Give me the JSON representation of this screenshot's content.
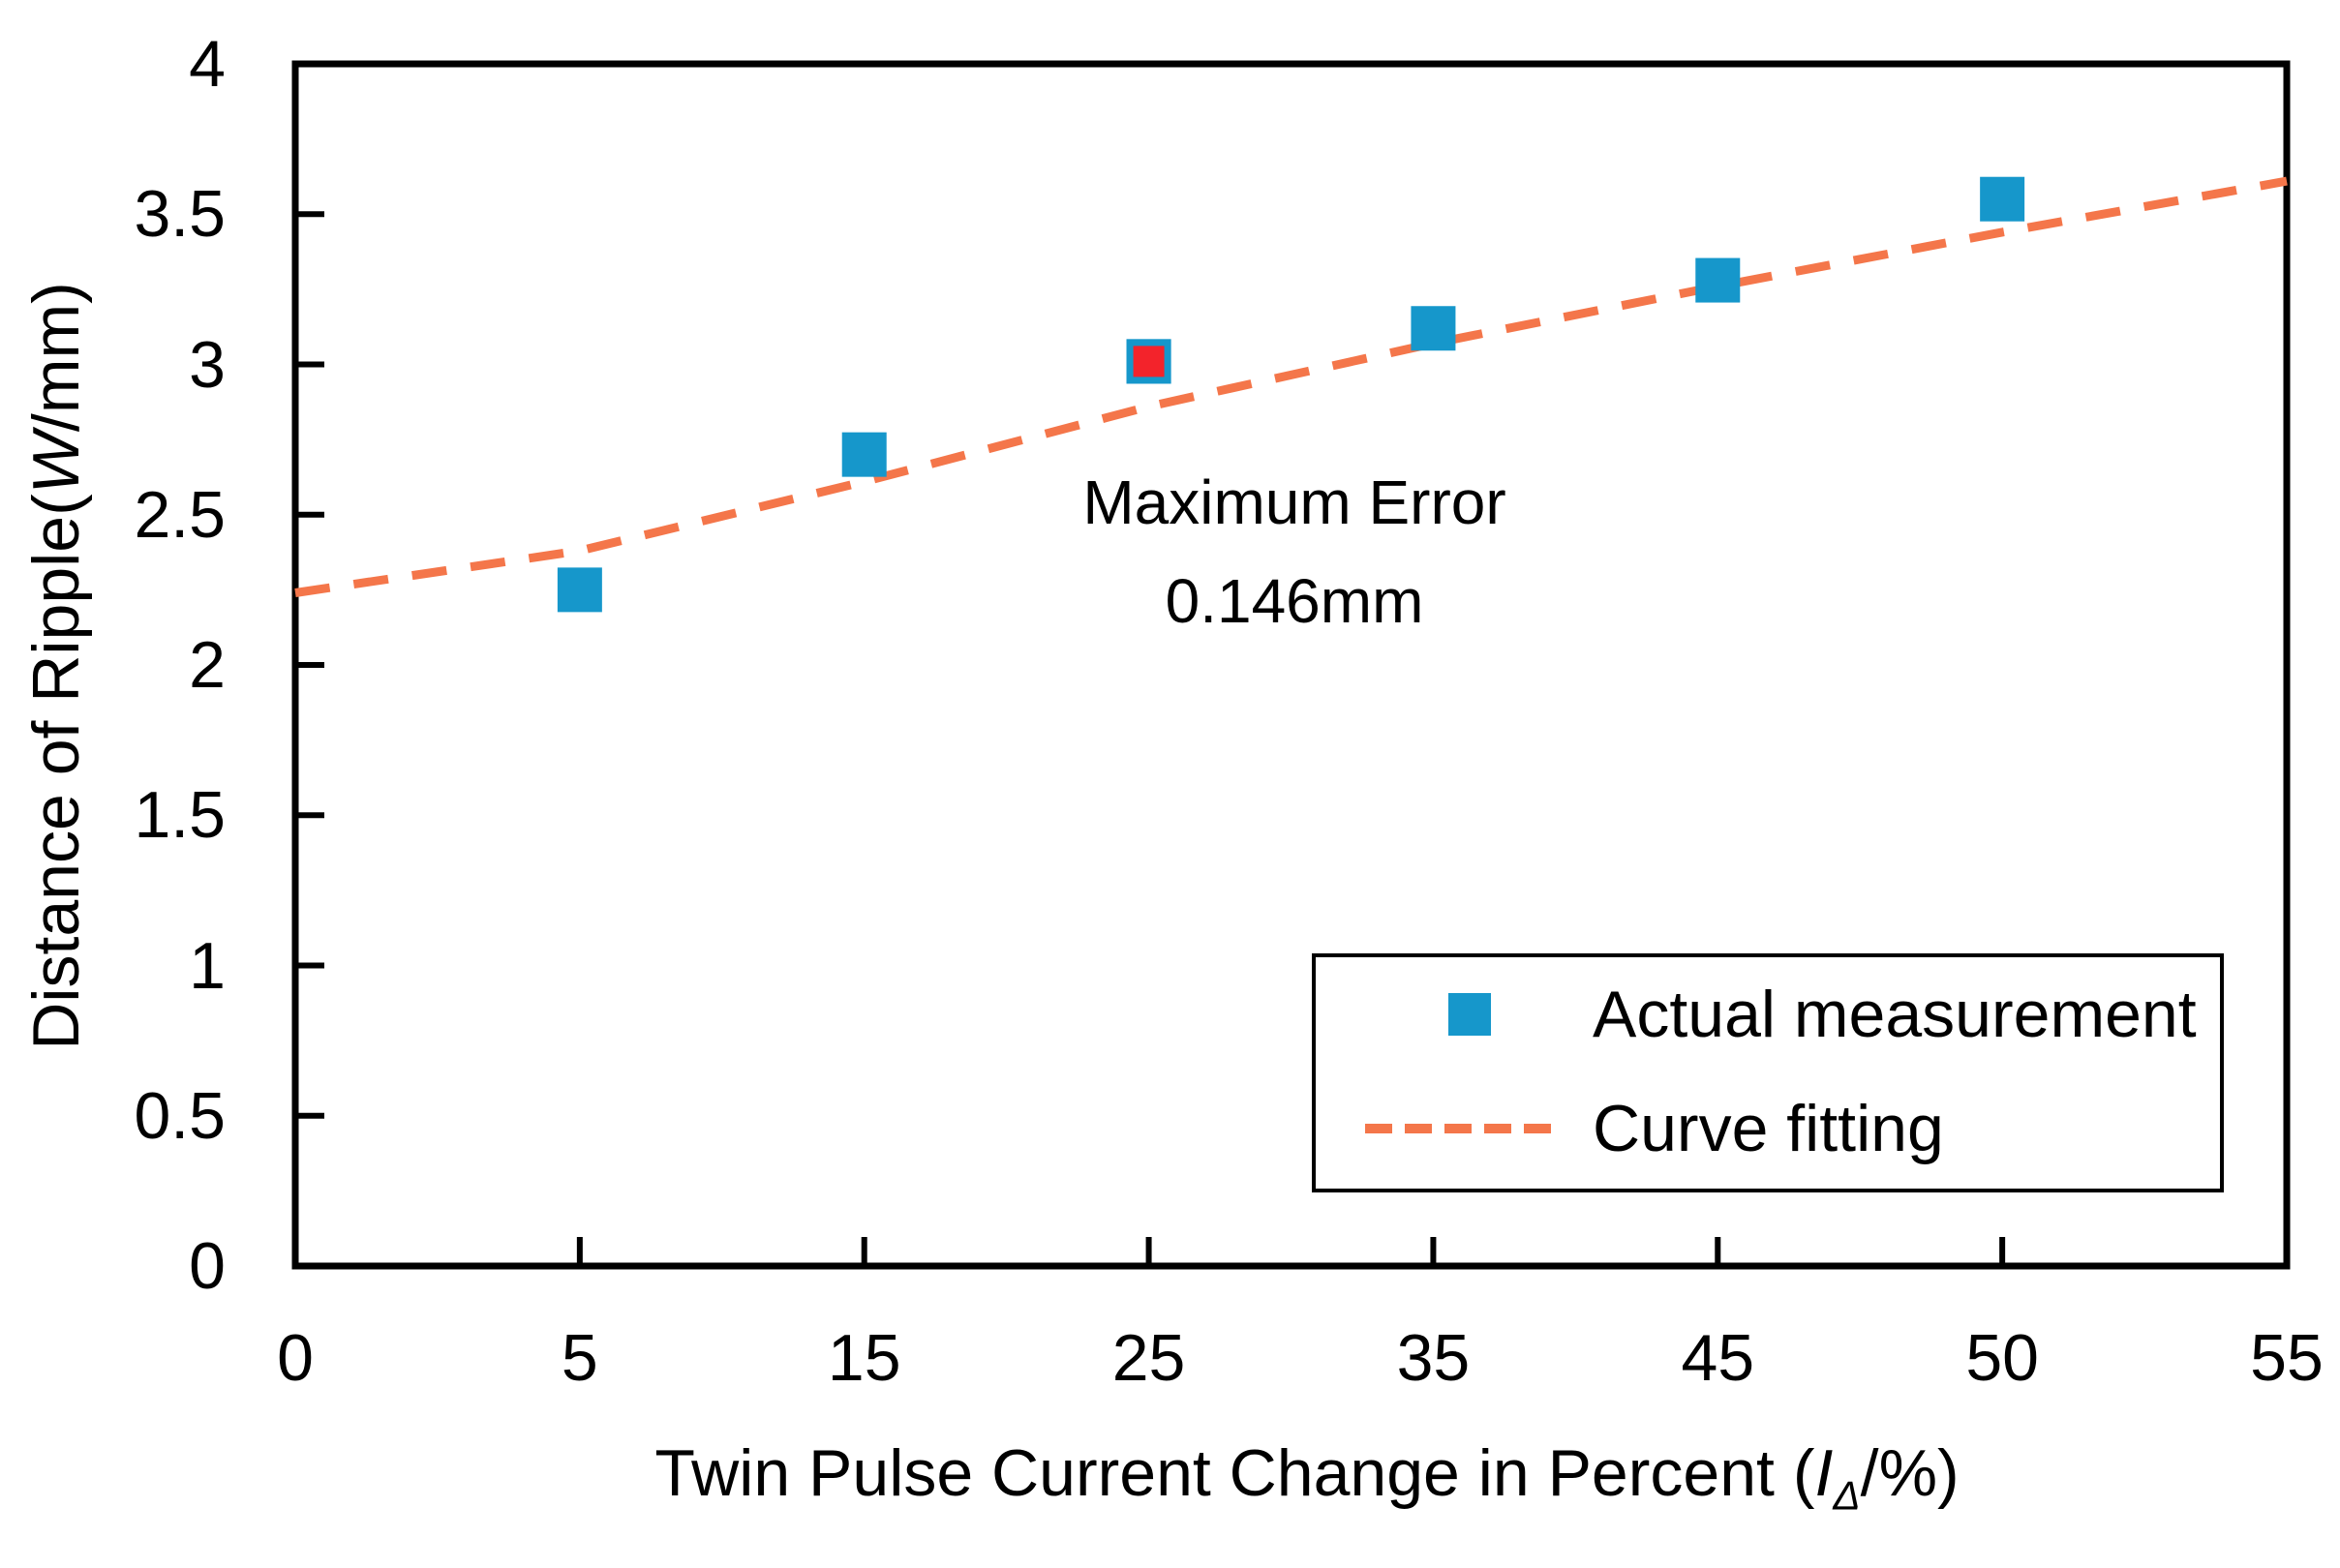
{
  "chart_data": {
    "type": "scatter",
    "title": "",
    "xlabel": "Twin Pulse Current Change in Percent (IΔ/%)",
    "ylabel": "Distance of Ripple(W/mm)",
    "xlabel_parts": {
      "pre": "Twin Pulse Current Change in Percent (",
      "var": "I",
      "sub": "Δ",
      "post": "/%)"
    },
    "ylabel_parts": {
      "pre": "Distance of Ripple(",
      "var": "W",
      "post": "/mm)"
    },
    "x_axis_type": "category",
    "x_categories": [
      "0",
      "5",
      "15",
      "25",
      "35",
      "45",
      "50",
      "55"
    ],
    "ylim": [
      0,
      4
    ],
    "yticks": [
      "0",
      "0.5",
      "1",
      "1.5",
      "2",
      "2.5",
      "3",
      "3.5",
      "4"
    ],
    "grid": false,
    "legend_position": "inside lower right",
    "series": [
      {
        "name": "Actual measurement",
        "type": "scatter",
        "marker": "square",
        "color": "#1697CB",
        "x": [
          5,
          15,
          25,
          35,
          45,
          50
        ],
        "y": [
          2.25,
          2.7,
          3.01,
          3.12,
          3.28,
          3.55
        ]
      },
      {
        "name": "Curve fitting",
        "type": "line",
        "line_style": "dashed",
        "color": "#F4764A",
        "x": [
          0,
          5,
          15,
          25,
          35,
          45,
          50,
          55
        ],
        "y": [
          2.24,
          2.38,
          2.61,
          2.86,
          3.07,
          3.26,
          3.44,
          3.61
        ]
      }
    ],
    "max_error_point": {
      "x": 25,
      "y": 3.01,
      "fill_color": "#F3232B",
      "border_color": "#1697CB"
    },
    "annotation": {
      "line1": "Maximum Error",
      "line2": "0.146mm"
    },
    "axis_color": "#000000"
  }
}
